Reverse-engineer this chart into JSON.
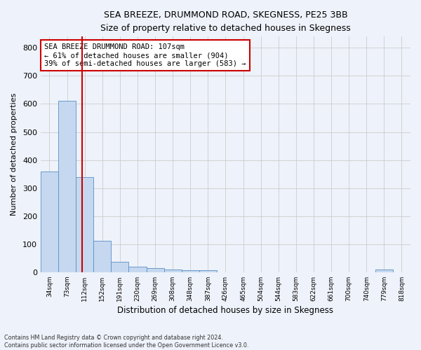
{
  "title": "SEA BREEZE, DRUMMOND ROAD, SKEGNESS, PE25 3BB",
  "subtitle": "Size of property relative to detached houses in Skegness",
  "xlabel": "Distribution of detached houses by size in Skegness",
  "ylabel": "Number of detached properties",
  "bar_values": [
    358,
    611,
    338,
    113,
    38,
    20,
    15,
    10,
    8,
    7,
    0,
    0,
    0,
    0,
    0,
    0,
    0,
    0,
    0,
    10,
    0
  ],
  "bin_labels": [
    "34sqm",
    "73sqm",
    "112sqm",
    "152sqm",
    "191sqm",
    "230sqm",
    "269sqm",
    "308sqm",
    "348sqm",
    "387sqm",
    "426sqm",
    "465sqm",
    "504sqm",
    "544sqm",
    "583sqm",
    "622sqm",
    "661sqm",
    "700sqm",
    "740sqm",
    "779sqm",
    "818sqm"
  ],
  "bar_color": "#c5d8f0",
  "bar_edge_color": "#5a8fc2",
  "grid_color": "#cccccc",
  "background_color": "#eef2fa",
  "annotation_text": "SEA BREEZE DRUMMOND ROAD: 107sqm\n← 61% of detached houses are smaller (904)\n39% of semi-detached houses are larger (583) →",
  "vline_color": "#cc0000",
  "ylim": [
    0,
    840
  ],
  "yticks": [
    0,
    100,
    200,
    300,
    400,
    500,
    600,
    700,
    800
  ],
  "footer_text": "Contains HM Land Registry data © Crown copyright and database right 2024.\nContains public sector information licensed under the Open Government Licence v3.0.",
  "annotation_box_color": "#ffffff",
  "annotation_box_edge": "#cc0000"
}
